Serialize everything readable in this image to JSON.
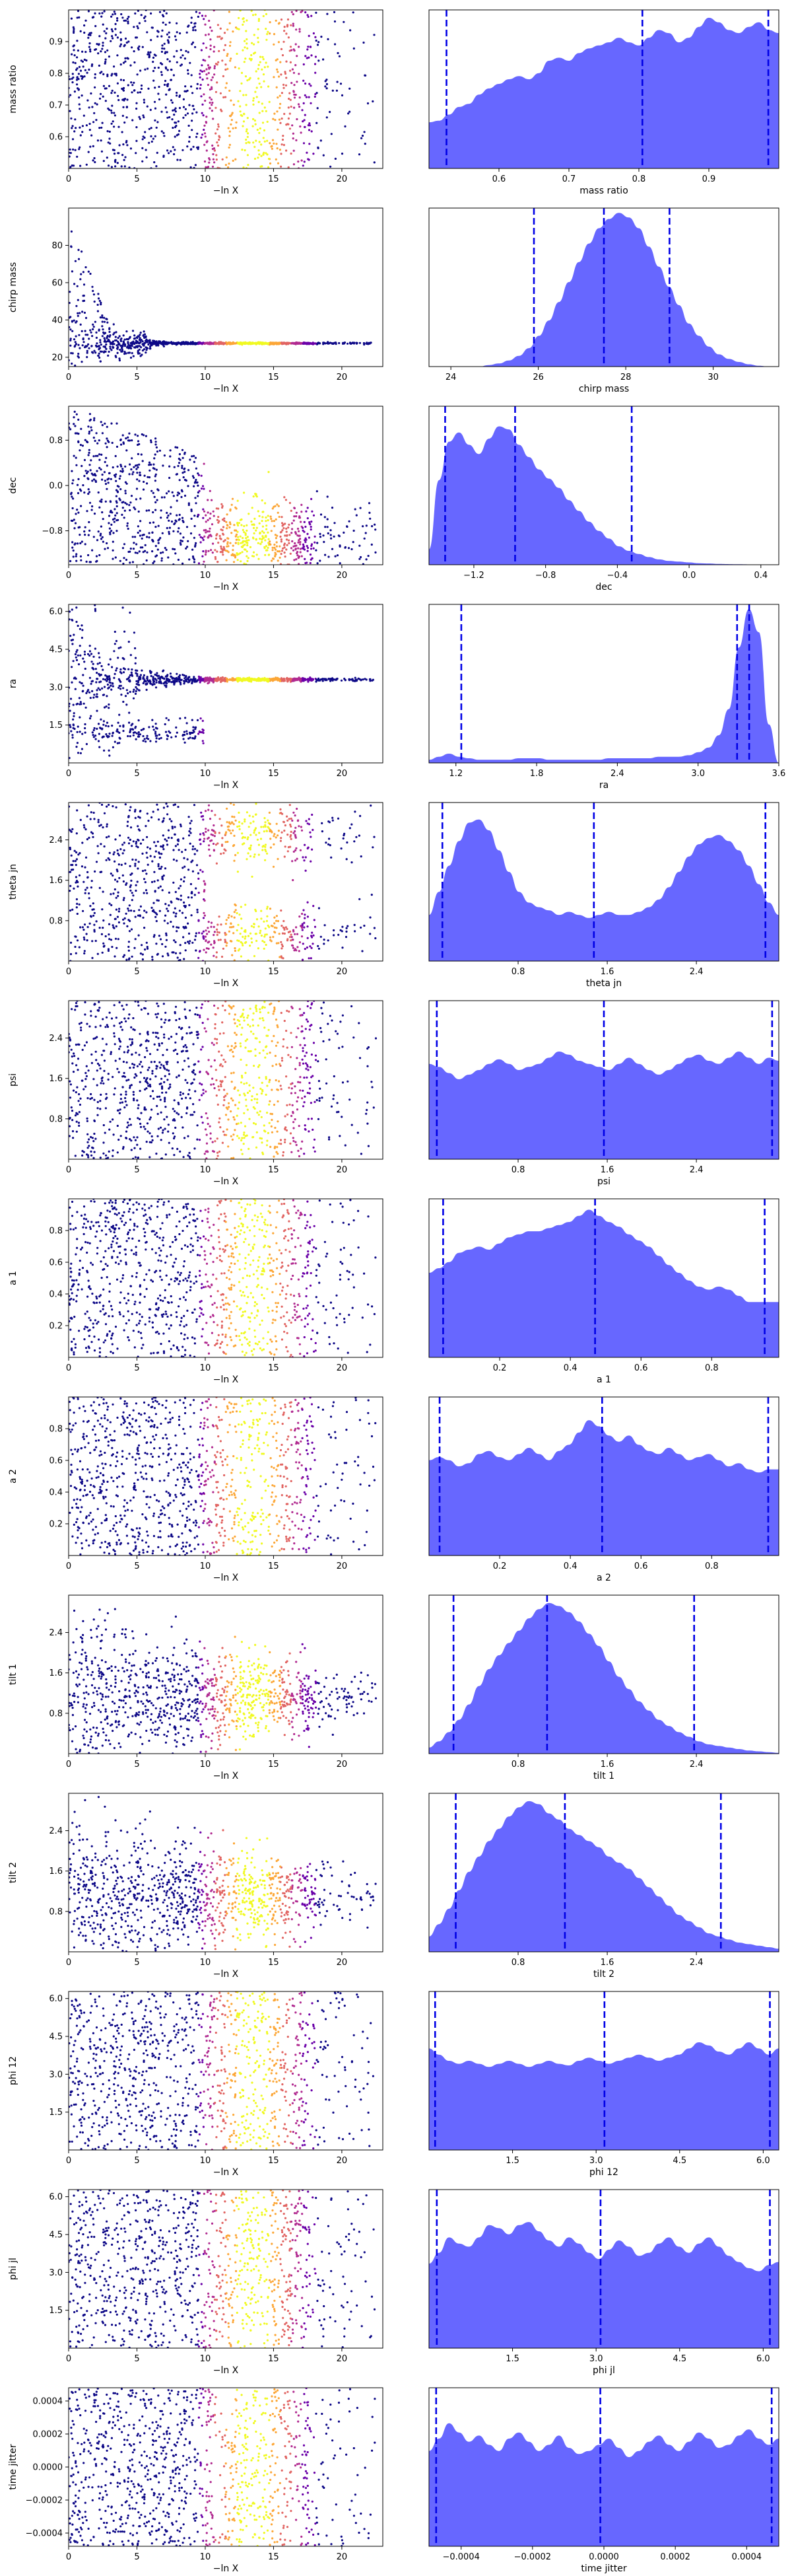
{
  "chart_data": {
    "type": "trace_and_posterior",
    "title": "",
    "scatter_xlabel": "−ln X",
    "scatter_xticks": [
      0,
      5,
      10,
      15,
      20
    ],
    "scatter_xlim": [
      0,
      23
    ],
    "colormap": [
      "#0d0887",
      "#6a00a8",
      "#b12a90",
      "#e16462",
      "#fca636",
      "#f0f921"
    ],
    "fill_color": "#6464ff",
    "quantile_line_color": "#0000e6",
    "panels": [
      {
        "param": "mass ratio",
        "ylabel": "mass ratio",
        "xlabel": "mass ratio",
        "ylim": [
          0.5,
          1.0
        ],
        "yticks": [
          0.6,
          0.7,
          0.8,
          0.9
        ],
        "xlim": [
          0.5,
          1.0
        ],
        "xticks": [
          0.6,
          0.7,
          0.8,
          0.9
        ],
        "quantiles": [
          0.525,
          0.805,
          0.985
        ],
        "scatter_kind": "uniform",
        "density": [
          0.3,
          0.31,
          0.35,
          0.4,
          0.42,
          0.48,
          0.52,
          0.55,
          0.58,
          0.6,
          0.58,
          0.62,
          0.7,
          0.72,
          0.7,
          0.75,
          0.78,
          0.8,
          0.82,
          0.85,
          0.82,
          0.8,
          0.85,
          0.9,
          0.88,
          0.82,
          0.85,
          0.92,
          0.98,
          0.95,
          0.9,
          0.88,
          0.92,
          0.95,
          0.9,
          0.88
        ]
      },
      {
        "param": "chirp mass",
        "ylabel": "chirp mass",
        "xlabel": "chirp mass",
        "ylim": [
          15,
          100
        ],
        "yticks": [
          20,
          40,
          60,
          80
        ],
        "xlim": [
          23.5,
          31.5
        ],
        "xticks": [
          24,
          26,
          28,
          30
        ],
        "quantiles": [
          25.9,
          27.5,
          29.0
        ],
        "scatter_kind": "chirp",
        "density": [
          0.0,
          0.0,
          0.0,
          0.0,
          0.0,
          0.0,
          0.01,
          0.02,
          0.04,
          0.07,
          0.12,
          0.2,
          0.3,
          0.42,
          0.55,
          0.68,
          0.8,
          0.9,
          0.96,
          1.0,
          0.97,
          0.9,
          0.78,
          0.65,
          0.52,
          0.4,
          0.28,
          0.2,
          0.13,
          0.08,
          0.05,
          0.03,
          0.015,
          0.005,
          0.0,
          0.0
        ]
      },
      {
        "param": "dec",
        "ylabel": "dec",
        "xlabel": "dec",
        "ylim": [
          -1.4,
          1.4
        ],
        "yticks": [
          -0.8,
          0.0,
          0.8
        ],
        "xlim": [
          -1.45,
          0.5
        ],
        "xticks": [
          -1.2,
          -0.8,
          -0.4,
          0.0,
          0.4
        ],
        "quantiles": [
          -1.36,
          -0.97,
          -0.32
        ],
        "scatter_kind": "dec",
        "density": [
          0.1,
          0.55,
          0.8,
          0.86,
          0.78,
          0.72,
          0.82,
          0.9,
          0.88,
          0.78,
          0.7,
          0.62,
          0.56,
          0.5,
          0.42,
          0.35,
          0.28,
          0.22,
          0.17,
          0.12,
          0.09,
          0.07,
          0.05,
          0.035,
          0.025,
          0.02,
          0.015,
          0.01,
          0.008,
          0.005,
          0.004,
          0.003,
          0.002,
          0.001,
          0.0,
          0.0
        ]
      },
      {
        "param": "ra",
        "ylabel": "ra",
        "xlabel": "ra",
        "ylim": [
          0,
          6.28
        ],
        "yticks": [
          1.5,
          3.0,
          4.5,
          6.0
        ],
        "xlim": [
          1.0,
          3.6
        ],
        "xticks": [
          1.2,
          1.8,
          2.4,
          3.0,
          3.6
        ],
        "quantiles": [
          1.24,
          3.29,
          3.38
        ],
        "scatter_kind": "ra",
        "density": [
          0.02,
          0.04,
          0.06,
          0.04,
          0.03,
          0.02,
          0.02,
          0.02,
          0.02,
          0.03,
          0.03,
          0.03,
          0.02,
          0.02,
          0.02,
          0.02,
          0.02,
          0.02,
          0.03,
          0.03,
          0.03,
          0.03,
          0.03,
          0.04,
          0.04,
          0.04,
          0.05,
          0.07,
          0.1,
          0.18,
          0.35,
          0.75,
          1.0,
          0.85,
          0.25,
          0.0
        ]
      },
      {
        "param": "theta jn",
        "ylabel": "theta jn",
        "xlabel": "theta jn",
        "ylim": [
          0,
          3.14
        ],
        "yticks": [
          0.8,
          1.6,
          2.4
        ],
        "xlim": [
          0,
          3.14
        ],
        "xticks": [
          0.8,
          1.6,
          2.4
        ],
        "quantiles": [
          0.12,
          1.48,
          3.02
        ],
        "scatter_kind": "theta",
        "density": [
          0.3,
          0.45,
          0.62,
          0.78,
          0.9,
          0.92,
          0.85,
          0.72,
          0.58,
          0.45,
          0.38,
          0.35,
          0.33,
          0.3,
          0.32,
          0.3,
          0.28,
          0.3,
          0.32,
          0.3,
          0.3,
          0.32,
          0.35,
          0.4,
          0.48,
          0.58,
          0.68,
          0.76,
          0.8,
          0.82,
          0.78,
          0.72,
          0.62,
          0.5,
          0.38,
          0.3
        ]
      },
      {
        "param": "psi",
        "ylabel": "psi",
        "xlabel": "psi",
        "ylim": [
          0,
          3.14
        ],
        "yticks": [
          0.8,
          1.6,
          2.4
        ],
        "xlim": [
          0,
          3.14
        ],
        "xticks": [
          0.8,
          1.6,
          2.4
        ],
        "quantiles": [
          0.07,
          1.57,
          3.08
        ],
        "scatter_kind": "uniform",
        "density": [
          0.62,
          0.6,
          0.56,
          0.52,
          0.55,
          0.58,
          0.62,
          0.65,
          0.62,
          0.58,
          0.6,
          0.62,
          0.66,
          0.7,
          0.68,
          0.64,
          0.62,
          0.6,
          0.58,
          0.62,
          0.66,
          0.62,
          0.58,
          0.55,
          0.58,
          0.62,
          0.66,
          0.68,
          0.64,
          0.62,
          0.66,
          0.7,
          0.66,
          0.62,
          0.66,
          0.64
        ]
      },
      {
        "param": "a 1",
        "ylabel": "a 1",
        "xlabel": "a 1",
        "ylim": [
          0,
          1.0
        ],
        "yticks": [
          0.2,
          0.4,
          0.6,
          0.8
        ],
        "xlim": [
          0,
          0.99
        ],
        "xticks": [
          0.2,
          0.4,
          0.6,
          0.8
        ],
        "quantiles": [
          0.04,
          0.47,
          0.95
        ],
        "scatter_kind": "uniform",
        "density": [
          0.55,
          0.58,
          0.62,
          0.68,
          0.7,
          0.72,
          0.7,
          0.74,
          0.78,
          0.8,
          0.82,
          0.82,
          0.84,
          0.86,
          0.88,
          0.92,
          0.96,
          0.92,
          0.88,
          0.85,
          0.8,
          0.76,
          0.72,
          0.66,
          0.6,
          0.55,
          0.5,
          0.46,
          0.44,
          0.46,
          0.44,
          0.4,
          0.36,
          0.36,
          0.36,
          0.36
        ]
      },
      {
        "param": "a 2",
        "ylabel": "a 2",
        "xlabel": "a 2",
        "ylim": [
          0,
          1.0
        ],
        "yticks": [
          0.2,
          0.4,
          0.6,
          0.8
        ],
        "xlim": [
          0,
          0.99
        ],
        "xticks": [
          0.2,
          0.4,
          0.6,
          0.8
        ],
        "quantiles": [
          0.03,
          0.49,
          0.96
        ],
        "scatter_kind": "uniform",
        "density": [
          0.62,
          0.64,
          0.62,
          0.58,
          0.6,
          0.66,
          0.68,
          0.64,
          0.62,
          0.66,
          0.7,
          0.66,
          0.62,
          0.68,
          0.72,
          0.8,
          0.88,
          0.84,
          0.78,
          0.74,
          0.78,
          0.72,
          0.68,
          0.66,
          0.7,
          0.66,
          0.62,
          0.64,
          0.66,
          0.62,
          0.58,
          0.6,
          0.56,
          0.54,
          0.56,
          0.56
        ]
      },
      {
        "param": "tilt 1",
        "ylabel": "tilt 1",
        "xlabel": "tilt 1",
        "ylim": [
          0,
          3.14
        ],
        "yticks": [
          0.8,
          1.6,
          2.4
        ],
        "xlim": [
          0,
          3.14
        ],
        "xticks": [
          0.8,
          1.6,
          2.4
        ],
        "quantiles": [
          0.22,
          1.06,
          2.38
        ],
        "scatter_kind": "tilt",
        "density": [
          0.04,
          0.08,
          0.14,
          0.22,
          0.32,
          0.44,
          0.55,
          0.64,
          0.72,
          0.8,
          0.88,
          0.94,
          0.98,
          0.96,
          0.92,
          0.86,
          0.78,
          0.7,
          0.6,
          0.5,
          0.42,
          0.34,
          0.28,
          0.22,
          0.18,
          0.14,
          0.11,
          0.08,
          0.06,
          0.05,
          0.04,
          0.03,
          0.02,
          0.015,
          0.01,
          0.005
        ]
      },
      {
        "param": "tilt 2",
        "ylabel": "tilt 2",
        "xlabel": "tilt 2",
        "ylim": [
          0,
          3.14
        ],
        "yticks": [
          0.8,
          1.6,
          2.4
        ],
        "xlim": [
          0,
          3.14
        ],
        "xticks": [
          0.8,
          1.6,
          2.4
        ],
        "quantiles": [
          0.24,
          1.22,
          2.62
        ],
        "scatter_kind": "tilt",
        "density": [
          0.1,
          0.18,
          0.28,
          0.4,
          0.52,
          0.62,
          0.72,
          0.8,
          0.88,
          0.94,
          0.98,
          0.96,
          0.9,
          0.86,
          0.8,
          0.76,
          0.72,
          0.68,
          0.62,
          0.58,
          0.54,
          0.48,
          0.42,
          0.36,
          0.3,
          0.24,
          0.2,
          0.16,
          0.12,
          0.1,
          0.08,
          0.06,
          0.05,
          0.04,
          0.03,
          0.02
        ]
      },
      {
        "param": "phi 12",
        "ylabel": "phi 12",
        "xlabel": "phi 12",
        "ylim": [
          0,
          6.28
        ],
        "yticks": [
          1.5,
          3.0,
          4.5,
          6.0
        ],
        "xlim": [
          0,
          6.28
        ],
        "xticks": [
          1.5,
          3.0,
          4.5,
          6.0
        ],
        "quantiles": [
          0.11,
          3.15,
          6.12
        ],
        "scatter_kind": "uniform",
        "density": [
          0.66,
          0.62,
          0.58,
          0.56,
          0.58,
          0.56,
          0.54,
          0.56,
          0.58,
          0.56,
          0.54,
          0.56,
          0.58,
          0.56,
          0.55,
          0.58,
          0.6,
          0.58,
          0.56,
          0.58,
          0.6,
          0.62,
          0.6,
          0.58,
          0.6,
          0.62,
          0.66,
          0.7,
          0.68,
          0.64,
          0.62,
          0.66,
          0.7,
          0.66,
          0.62,
          0.66
        ]
      },
      {
        "param": "phi jl",
        "ylabel": "phi jl",
        "xlabel": "phi jl",
        "ylim": [
          0,
          6.28
        ],
        "yticks": [
          1.5,
          3.0,
          4.5,
          6.0
        ],
        "xlim": [
          0,
          6.28
        ],
        "xticks": [
          1.5,
          3.0,
          4.5,
          6.0
        ],
        "quantiles": [
          0.14,
          3.08,
          6.12
        ],
        "scatter_kind": "uniform",
        "density": [
          0.55,
          0.62,
          0.72,
          0.68,
          0.66,
          0.72,
          0.8,
          0.78,
          0.74,
          0.8,
          0.82,
          0.76,
          0.7,
          0.66,
          0.72,
          0.68,
          0.62,
          0.58,
          0.64,
          0.7,
          0.66,
          0.6,
          0.62,
          0.68,
          0.72,
          0.66,
          0.62,
          0.68,
          0.72,
          0.66,
          0.6,
          0.56,
          0.52,
          0.5,
          0.54,
          0.56
        ]
      },
      {
        "param": "time jitter",
        "ylabel": "time jitter",
        "xlabel": "time jitter",
        "ylim": [
          -0.00048,
          0.00048
        ],
        "yticks": [
          -0.0004,
          -0.0002,
          0.0,
          0.0002,
          0.0004
        ],
        "xlim": [
          -0.00049,
          0.00049
        ],
        "xticks": [
          -0.0004,
          -0.0002,
          0.0,
          0.0002,
          0.0004
        ],
        "quantiles": [
          -0.00047,
          -1e-05,
          0.00047
        ],
        "scatter_kind": "uniform",
        "density": [
          0.62,
          0.7,
          0.8,
          0.74,
          0.68,
          0.72,
          0.66,
          0.62,
          0.7,
          0.74,
          0.68,
          0.62,
          0.66,
          0.72,
          0.64,
          0.6,
          0.62,
          0.66,
          0.7,
          0.64,
          0.58,
          0.62,
          0.68,
          0.72,
          0.66,
          0.62,
          0.68,
          0.74,
          0.7,
          0.64,
          0.66,
          0.72,
          0.76,
          0.7,
          0.66,
          0.7
        ]
      }
    ]
  }
}
